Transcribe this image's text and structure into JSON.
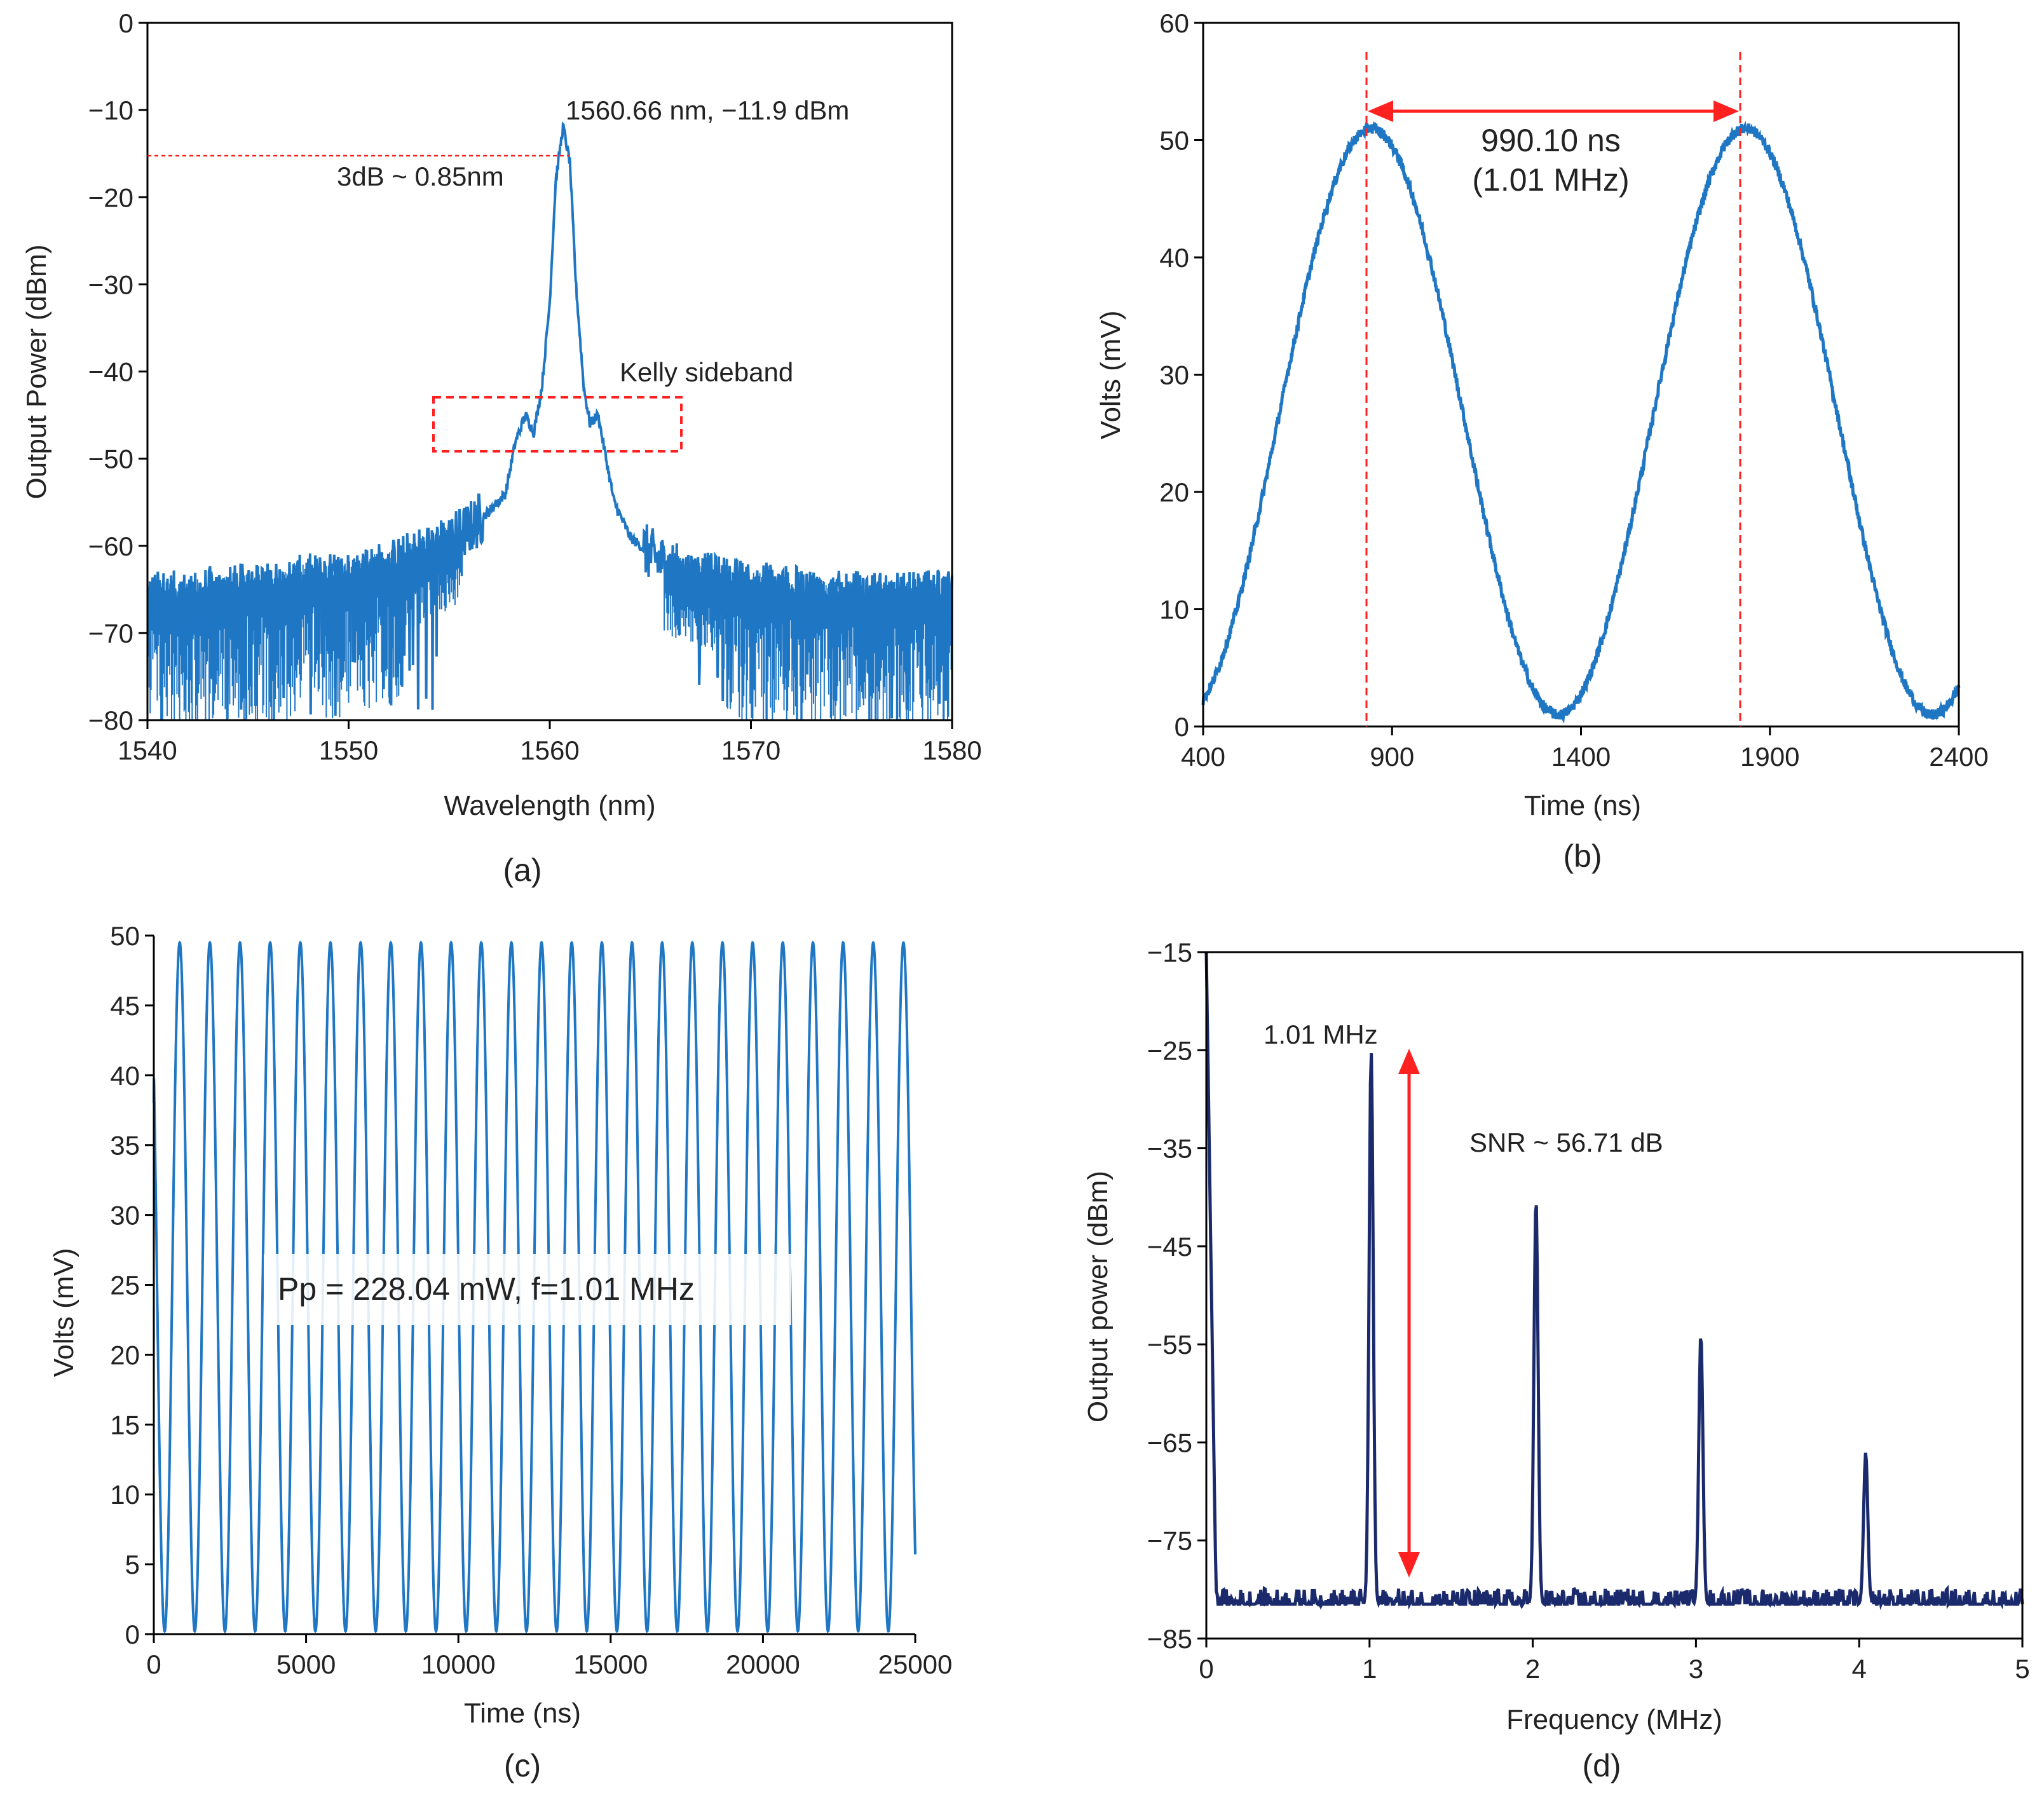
{
  "colors": {
    "trace_blue": "#1f77c4",
    "trace_navy": "#1a2a6c",
    "annotation_red": "#ff2020",
    "axis": "#000000"
  },
  "chart_data": [
    {
      "id": "a",
      "panel_label": "(a)",
      "type": "line",
      "xlabel": "Wavelength (nm)",
      "ylabel": "Output Power (dBm)",
      "xlim": [
        1540,
        1580
      ],
      "ylim": [
        -80,
        0
      ],
      "xticks": [
        1540,
        1550,
        1560,
        1570,
        1580
      ],
      "yticks": [
        0,
        -10,
        -20,
        -30,
        -40,
        -50,
        -60,
        -70,
        -80
      ],
      "series": [
        {
          "color": "#1f77c4",
          "x": [
            1540,
            1541,
            1542,
            1543,
            1544,
            1545,
            1546,
            1547,
            1548,
            1549,
            1550,
            1551,
            1552,
            1553,
            1554,
            1555,
            1556,
            1557,
            1557.8,
            1558.3,
            1558.8,
            1559.2,
            1559.6,
            1560.0,
            1560.3,
            1560.66,
            1561.0,
            1561.3,
            1561.7,
            1562.0,
            1562.4,
            1562.8,
            1563.2,
            1563.6,
            1564,
            1565,
            1566,
            1567,
            1568,
            1569,
            1570,
            1571,
            1572,
            1573,
            1574,
            1575,
            1576,
            1577,
            1578,
            1579,
            1580
          ],
          "y": [
            -66,
            -66,
            -66,
            -65.5,
            -65.5,
            -65,
            -65,
            -64.5,
            -64,
            -64,
            -63.5,
            -63,
            -62.5,
            -61.5,
            -60.5,
            -59.5,
            -58,
            -56,
            -54,
            -48,
            -45,
            -47,
            -42,
            -32,
            -18,
            -11.9,
            -16,
            -30,
            -42,
            -46,
            -45,
            -50,
            -55,
            -57,
            -59,
            -61,
            -62.5,
            -63.5,
            -64,
            -64.5,
            -65,
            -65,
            -65.5,
            -65.5,
            -66,
            -66,
            -66,
            -66,
            -66,
            -66,
            -66
          ]
        }
      ],
      "noise_floor": {
        "ymin": -80,
        "ymax": -64
      },
      "annotations": [
        {
          "text": "1560.66 nm, −11.9 dBm",
          "x": 1560.66,
          "y": -11.9
        },
        {
          "text": "3dB ~ 0.85nm",
          "y": -14.9
        },
        {
          "text": "Kelly sideband",
          "box_x": [
            1554.5,
            1566.5
          ],
          "box_y": [
            -49,
            -43
          ]
        }
      ]
    },
    {
      "id": "b",
      "panel_label": "(b)",
      "type": "line",
      "xlabel": "Time (ns)",
      "ylabel": "Volts (mV)",
      "xlim": [
        400,
        2400
      ],
      "ylim": [
        0,
        60
      ],
      "xticks": [
        400,
        900,
        1400,
        1900,
        2400
      ],
      "yticks": [
        0,
        10,
        20,
        30,
        40,
        50,
        60
      ],
      "series": [
        {
          "color": "#1f77c4",
          "period": 990.1,
          "peak_time": 845,
          "peak": 51,
          "trough": 1
        }
      ],
      "annotations": [
        {
          "text": "990.10 ns",
          "x1": 845,
          "x2": 1835
        },
        {
          "text": "(1.01 MHz)"
        }
      ]
    },
    {
      "id": "c",
      "panel_label": "(c)",
      "type": "line",
      "xlabel": "Time (ns)",
      "ylabel": "Volts (mV)",
      "xlim": [
        0,
        25000
      ],
      "ylim": [
        0,
        50
      ],
      "xticks": [
        0,
        5000,
        10000,
        15000,
        20000,
        25000
      ],
      "yticks": [
        0,
        5,
        10,
        15,
        20,
        25,
        30,
        35,
        40,
        45,
        50
      ],
      "series": [
        {
          "color": "#1f77c4",
          "period": 990.1,
          "peak": 49.5,
          "trough": 0.2,
          "start_value": 38,
          "end_value": 6
        }
      ],
      "annotations": [
        {
          "text": "Pp = 228.04 mW, f=1.01 MHz"
        }
      ]
    },
    {
      "id": "d",
      "panel_label": "(d)",
      "type": "line",
      "xlabel": "Frequency (MHz)",
      "ylabel": "Output power (dBm)",
      "xlim": [
        0,
        5
      ],
      "ylim": [
        -85,
        -15
      ],
      "xticks": [
        0,
        1,
        2,
        3,
        4,
        5
      ],
      "yticks": [
        -15,
        -25,
        -35,
        -45,
        -55,
        -65,
        -75,
        -85
      ],
      "series": [
        {
          "color": "#1a2a6c",
          "noise_floor": -81.5,
          "peaks": [
            {
              "f": 1.01,
              "power": -25.1
            },
            {
              "f": 2.02,
              "power": -40.2
            },
            {
              "f": 3.03,
              "power": -54
            },
            {
              "f": 4.04,
              "power": -66
            }
          ]
        }
      ],
      "annotations": [
        {
          "text": "1.01 MHz"
        },
        {
          "text": "SNR ~ 56.71 dB",
          "y_top": -25.1,
          "y_bottom": -81.8
        }
      ]
    }
  ]
}
